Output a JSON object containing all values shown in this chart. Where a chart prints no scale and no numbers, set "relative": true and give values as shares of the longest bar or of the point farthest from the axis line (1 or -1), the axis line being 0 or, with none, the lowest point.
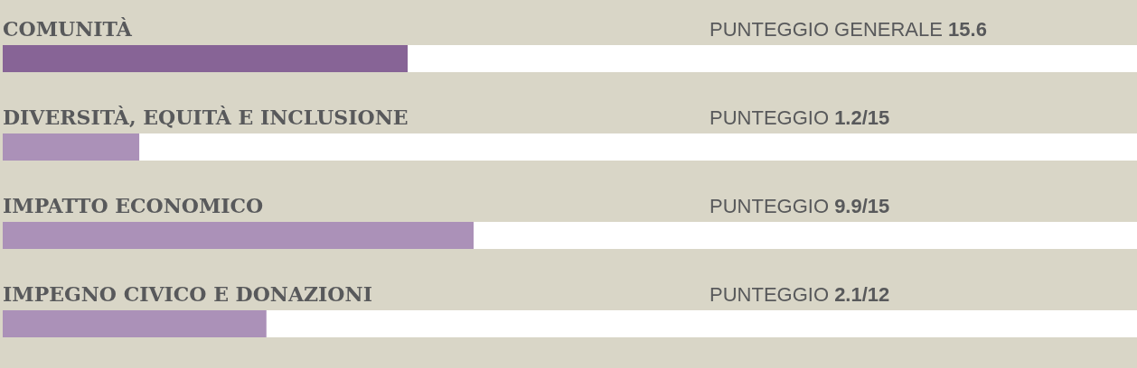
{
  "chart_data": {
    "type": "bar",
    "orientation": "horizontal",
    "relative": true,
    "categories": [
      "COMUNITÀ",
      "DIVERSITÀ, EQUITÀ E INCLUSIONE",
      "IMPATTO ECONOMICO",
      "IMPEGNO CIVICO E DONAZIONI"
    ],
    "values": [
      0.86,
      0.29,
      1,
      0.56
    ],
    "colors": [
      "#876496",
      "#ab91b8",
      "#ab91b8",
      "#ab91b8"
    ],
    "annotations": [
      "PUNTEGGIO GENERALE 15.6",
      "PUNTEGGIO 1.2/15",
      "PUNTEGGIO 9.9/15",
      "PUNTEGGIO 2.1/12"
    ]
  }
}
